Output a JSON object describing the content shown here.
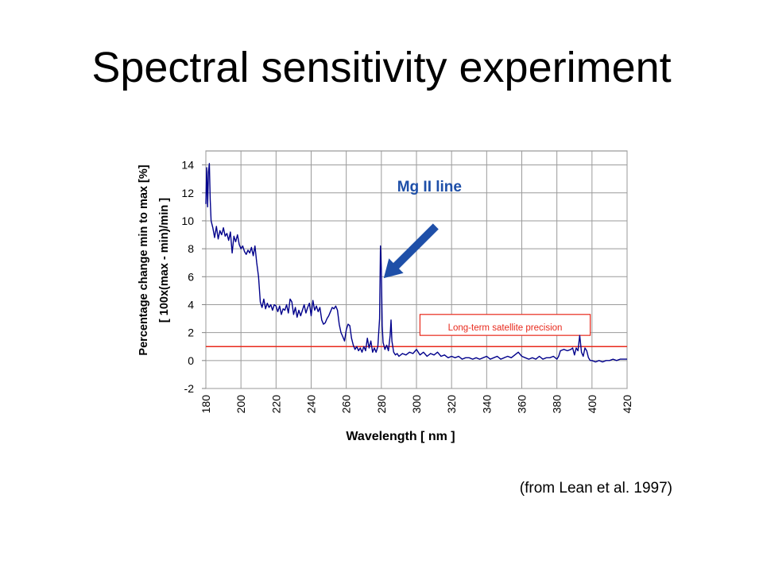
{
  "slide": {
    "title": "Spectral sensitivity experiment",
    "citation": "(from Lean et al. 1997)"
  },
  "chart_data": {
    "type": "line",
    "title": "",
    "xlabel": "Wavelength [ nm ]",
    "ylabel": "Percentage change min to max [%]",
    "ylabel2": "[ 100x(max - min)/min ]",
    "xlim": [
      180,
      420
    ],
    "ylim": [
      -2,
      15
    ],
    "x_ticks": [
      180,
      200,
      220,
      240,
      260,
      280,
      300,
      320,
      340,
      360,
      380,
      400,
      420
    ],
    "y_ticks": [
      -2,
      0,
      2,
      4,
      6,
      8,
      10,
      12,
      14
    ],
    "grid": true,
    "series": [
      {
        "color": "#00008b",
        "points": [
          [
            180,
            11.2
          ],
          [
            180.5,
            13.8
          ],
          [
            181,
            11.0
          ],
          [
            181.5,
            13.5
          ],
          [
            182,
            14.1
          ],
          [
            182.5,
            11.5
          ],
          [
            183,
            10.0
          ],
          [
            184,
            9.5
          ],
          [
            185,
            8.8
          ],
          [
            186,
            9.6
          ],
          [
            187,
            8.7
          ],
          [
            188,
            9.3
          ],
          [
            189,
            9.0
          ],
          [
            190,
            9.5
          ],
          [
            191,
            8.9
          ],
          [
            192,
            9.1
          ],
          [
            193,
            8.6
          ],
          [
            194,
            9.2
          ],
          [
            195,
            7.7
          ],
          [
            196,
            8.9
          ],
          [
            197,
            8.5
          ],
          [
            198,
            9.0
          ],
          [
            199,
            8.3
          ],
          [
            200,
            8.0
          ],
          [
            201,
            8.2
          ],
          [
            202,
            7.8
          ],
          [
            203,
            7.6
          ],
          [
            204,
            7.9
          ],
          [
            205,
            7.7
          ],
          [
            206,
            8.1
          ],
          [
            207,
            7.5
          ],
          [
            208,
            8.2
          ],
          [
            209,
            7.0
          ],
          [
            210,
            6.0
          ],
          [
            211,
            4.2
          ],
          [
            212,
            3.8
          ],
          [
            213,
            4.4
          ],
          [
            214,
            3.7
          ],
          [
            215,
            4.1
          ],
          [
            216,
            3.8
          ],
          [
            217,
            4.0
          ],
          [
            218,
            3.6
          ],
          [
            219,
            4.0
          ],
          [
            220,
            3.9
          ],
          [
            221,
            3.5
          ],
          [
            222,
            3.9
          ],
          [
            223,
            3.3
          ],
          [
            224,
            3.7
          ],
          [
            225,
            3.6
          ],
          [
            226,
            4.0
          ],
          [
            227,
            3.4
          ],
          [
            228,
            4.4
          ],
          [
            229,
            4.2
          ],
          [
            230,
            3.3
          ],
          [
            231,
            3.8
          ],
          [
            232,
            3.1
          ],
          [
            233,
            3.6
          ],
          [
            234,
            3.2
          ],
          [
            235,
            3.6
          ],
          [
            236,
            4.0
          ],
          [
            237,
            3.4
          ],
          [
            238,
            3.8
          ],
          [
            239,
            4.1
          ],
          [
            240,
            3.2
          ],
          [
            241,
            4.3
          ],
          [
            242,
            3.6
          ],
          [
            243,
            3.9
          ],
          [
            244,
            3.5
          ],
          [
            245,
            3.8
          ],
          [
            246,
            2.9
          ],
          [
            247,
            2.6
          ],
          [
            248,
            2.7
          ],
          [
            249,
            3.0
          ],
          [
            250,
            3.2
          ],
          [
            251,
            3.5
          ],
          [
            252,
            3.8
          ],
          [
            253,
            3.7
          ],
          [
            254,
            3.9
          ],
          [
            255,
            3.6
          ],
          [
            256,
            2.6
          ],
          [
            257,
            2.0
          ],
          [
            258,
            1.7
          ],
          [
            259,
            1.4
          ],
          [
            260,
            2.2
          ],
          [
            261,
            2.6
          ],
          [
            262,
            2.5
          ],
          [
            263,
            1.6
          ],
          [
            264,
            1.1
          ],
          [
            265,
            0.8
          ],
          [
            266,
            1.0
          ],
          [
            267,
            0.7
          ],
          [
            268,
            0.9
          ],
          [
            269,
            0.6
          ],
          [
            270,
            1.0
          ],
          [
            271,
            0.7
          ],
          [
            272,
            1.6
          ],
          [
            273,
            0.9
          ],
          [
            274,
            1.4
          ],
          [
            275,
            0.6
          ],
          [
            276,
            0.9
          ],
          [
            277,
            0.6
          ],
          [
            278,
            1.0
          ],
          [
            279,
            3.0
          ],
          [
            279.5,
            8.2
          ],
          [
            280,
            6.5
          ],
          [
            280.5,
            2.5
          ],
          [
            281,
            1.3
          ],
          [
            282,
            0.8
          ],
          [
            283,
            1.1
          ],
          [
            284,
            0.7
          ],
          [
            285,
            1.8
          ],
          [
            285.5,
            2.9
          ],
          [
            286,
            1.4
          ],
          [
            287,
            0.6
          ],
          [
            288,
            0.4
          ],
          [
            289,
            0.5
          ],
          [
            290,
            0.3
          ],
          [
            291,
            0.4
          ],
          [
            292,
            0.5
          ],
          [
            294,
            0.4
          ],
          [
            296,
            0.6
          ],
          [
            298,
            0.5
          ],
          [
            300,
            0.8
          ],
          [
            302,
            0.4
          ],
          [
            304,
            0.6
          ],
          [
            306,
            0.3
          ],
          [
            308,
            0.5
          ],
          [
            310,
            0.4
          ],
          [
            312,
            0.6
          ],
          [
            314,
            0.3
          ],
          [
            316,
            0.4
          ],
          [
            318,
            0.2
          ],
          [
            320,
            0.3
          ],
          [
            322,
            0.2
          ],
          [
            324,
            0.3
          ],
          [
            326,
            0.1
          ],
          [
            328,
            0.2
          ],
          [
            330,
            0.2
          ],
          [
            332,
            0.1
          ],
          [
            334,
            0.2
          ],
          [
            336,
            0.1
          ],
          [
            338,
            0.2
          ],
          [
            340,
            0.3
          ],
          [
            342,
            0.1
          ],
          [
            344,
            0.2
          ],
          [
            346,
            0.3
          ],
          [
            348,
            0.1
          ],
          [
            350,
            0.2
          ],
          [
            352,
            0.3
          ],
          [
            354,
            0.2
          ],
          [
            356,
            0.4
          ],
          [
            358,
            0.6
          ],
          [
            360,
            0.3
          ],
          [
            362,
            0.2
          ],
          [
            364,
            0.1
          ],
          [
            366,
            0.2
          ],
          [
            368,
            0.1
          ],
          [
            370,
            0.3
          ],
          [
            372,
            0.1
          ],
          [
            374,
            0.2
          ],
          [
            376,
            0.2
          ],
          [
            378,
            0.3
          ],
          [
            380,
            0.1
          ],
          [
            381,
            0.3
          ],
          [
            382,
            0.7
          ],
          [
            384,
            0.8
          ],
          [
            386,
            0.7
          ],
          [
            388,
            0.8
          ],
          [
            389,
            0.9
          ],
          [
            390,
            0.4
          ],
          [
            391,
            0.9
          ],
          [
            392,
            0.7
          ],
          [
            393,
            1.8
          ],
          [
            394,
            0.6
          ],
          [
            395,
            0.3
          ],
          [
            396,
            0.9
          ],
          [
            397,
            0.7
          ],
          [
            398,
            0.2
          ],
          [
            399,
            0.0
          ],
          [
            400,
            0.0
          ],
          [
            402,
            -0.1
          ],
          [
            404,
            0.0
          ],
          [
            406,
            -0.1
          ],
          [
            408,
            0.0
          ],
          [
            410,
            0.0
          ],
          [
            412,
            0.1
          ],
          [
            414,
            0.0
          ],
          [
            416,
            0.1
          ],
          [
            418,
            0.1
          ],
          [
            420,
            0.1
          ]
        ]
      }
    ],
    "reference_line": {
      "y": 1.0,
      "color": "#e8291c",
      "label": "Long-term satellite precision"
    },
    "annotation": {
      "text": "Mg II line",
      "color": "#1e4fa8",
      "x": 280
    }
  }
}
